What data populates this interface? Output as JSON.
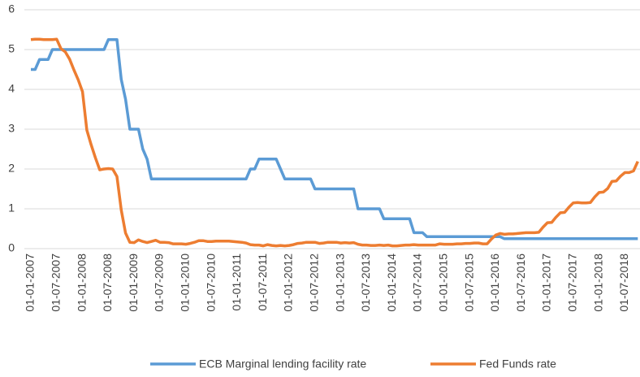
{
  "chart_data": {
    "type": "line",
    "categories": [
      "01-01-2007",
      null,
      null,
      null,
      null,
      null,
      "01-07-2007",
      null,
      null,
      null,
      null,
      null,
      "01-01-2008",
      null,
      null,
      null,
      null,
      null,
      "01-07-2008",
      null,
      null,
      null,
      null,
      null,
      "01-01-2009",
      null,
      null,
      null,
      null,
      null,
      "01-07-2009",
      null,
      null,
      null,
      null,
      null,
      "01-01-2010",
      null,
      null,
      null,
      null,
      null,
      "01-07-2010",
      null,
      null,
      null,
      null,
      null,
      "01-01-2011",
      null,
      null,
      null,
      null,
      null,
      "01-07-2011",
      null,
      null,
      null,
      null,
      null,
      "01-01-2012",
      null,
      null,
      null,
      null,
      null,
      "01-07-2012",
      null,
      null,
      null,
      null,
      null,
      "01-01-2013",
      null,
      null,
      null,
      null,
      null,
      "01-07-2013",
      null,
      null,
      null,
      null,
      null,
      "01-01-2014",
      null,
      null,
      null,
      null,
      null,
      "01-07-2014",
      null,
      null,
      null,
      null,
      null,
      "01-01-2015",
      null,
      null,
      null,
      null,
      null,
      "01-07-2015",
      null,
      null,
      null,
      null,
      null,
      "01-01-2016",
      null,
      null,
      null,
      null,
      null,
      "01-07-2016",
      null,
      null,
      null,
      null,
      null,
      "01-01-2017",
      null,
      null,
      null,
      null,
      null,
      "01-07-2017",
      null,
      null,
      null,
      null,
      null,
      "01-01-2018",
      null,
      null,
      null,
      null,
      null,
      "01-07-2018",
      null,
      null,
      null
    ],
    "series": [
      {
        "name": "ECB Marginal lending facility rate",
        "color": "#5b9bd5",
        "values": [
          4.5,
          4.5,
          4.75,
          4.75,
          4.75,
          5,
          5,
          5,
          5,
          5,
          5,
          5,
          5,
          5,
          5,
          5,
          5,
          5,
          5.25,
          5.25,
          5.25,
          4.25,
          3.75,
          3,
          3,
          3,
          2.5,
          2.25,
          1.75,
          1.75,
          1.75,
          1.75,
          1.75,
          1.75,
          1.75,
          1.75,
          1.75,
          1.75,
          1.75,
          1.75,
          1.75,
          1.75,
          1.75,
          1.75,
          1.75,
          1.75,
          1.75,
          1.75,
          1.75,
          1.75,
          1.75,
          2,
          2,
          2.25,
          2.25,
          2.25,
          2.25,
          2.25,
          2,
          1.75,
          1.75,
          1.75,
          1.75,
          1.75,
          1.75,
          1.75,
          1.5,
          1.5,
          1.5,
          1.5,
          1.5,
          1.5,
          1.5,
          1.5,
          1.5,
          1.5,
          1,
          1,
          1,
          1,
          1,
          1,
          0.75,
          0.75,
          0.75,
          0.75,
          0.75,
          0.75,
          0.75,
          0.4,
          0.4,
          0.4,
          0.3,
          0.3,
          0.3,
          0.3,
          0.3,
          0.3,
          0.3,
          0.3,
          0.3,
          0.3,
          0.3,
          0.3,
          0.3,
          0.3,
          0.3,
          0.3,
          0.3,
          0.3,
          0.25,
          0.25,
          0.25,
          0.25,
          0.25,
          0.25,
          0.25,
          0.25,
          0.25,
          0.25,
          0.25,
          0.25,
          0.25,
          0.25,
          0.25,
          0.25,
          0.25,
          0.25,
          0.25,
          0.25,
          0.25,
          0.25,
          0.25,
          0.25,
          0.25,
          0.25,
          0.25,
          0.25,
          0.25,
          0.25,
          0.25,
          0.25
        ]
      },
      {
        "name": "Fed Funds rate",
        "color": "#ed7d31",
        "values": [
          5.25,
          5.26,
          5.26,
          5.25,
          5.25,
          5.25,
          5.26,
          5.02,
          4.94,
          4.76,
          4.49,
          4.24,
          3.94,
          2.98,
          2.61,
          2.28,
          1.98,
          2,
          2.01,
          2,
          1.81,
          0.97,
          0.39,
          0.16,
          0.15,
          0.22,
          0.18,
          0.15,
          0.18,
          0.21,
          0.16,
          0.16,
          0.15,
          0.12,
          0.12,
          0.12,
          0.11,
          0.13,
          0.16,
          0.2,
          0.2,
          0.18,
          0.18,
          0.19,
          0.19,
          0.19,
          0.19,
          0.18,
          0.17,
          0.16,
          0.14,
          0.1,
          0.09,
          0.09,
          0.07,
          0.1,
          0.08,
          0.07,
          0.08,
          0.07,
          0.08,
          0.1,
          0.13,
          0.14,
          0.16,
          0.16,
          0.16,
          0.13,
          0.14,
          0.16,
          0.16,
          0.16,
          0.14,
          0.15,
          0.14,
          0.15,
          0.11,
          0.09,
          0.09,
          0.08,
          0.08,
          0.09,
          0.08,
          0.09,
          0.07,
          0.07,
          0.08,
          0.09,
          0.09,
          0.1,
          0.09,
          0.09,
          0.09,
          0.09,
          0.09,
          0.12,
          0.11,
          0.11,
          0.11,
          0.12,
          0.12,
          0.13,
          0.13,
          0.14,
          0.14,
          0.12,
          0.12,
          0.24,
          0.34,
          0.38,
          0.36,
          0.37,
          0.37,
          0.38,
          0.39,
          0.4,
          0.4,
          0.4,
          0.41,
          0.54,
          0.65,
          0.66,
          0.79,
          0.9,
          0.91,
          1.04,
          1.15,
          1.16,
          1.15,
          1.15,
          1.16,
          1.3,
          1.41,
          1.42,
          1.51,
          1.69,
          1.7,
          1.82,
          1.91,
          1.91,
          1.95,
          2.19
        ]
      }
    ],
    "ylim": [
      0,
      6
    ],
    "yticks": [
      0,
      1,
      2,
      3,
      4,
      5,
      6
    ],
    "grid": true,
    "legend": "bottom"
  }
}
